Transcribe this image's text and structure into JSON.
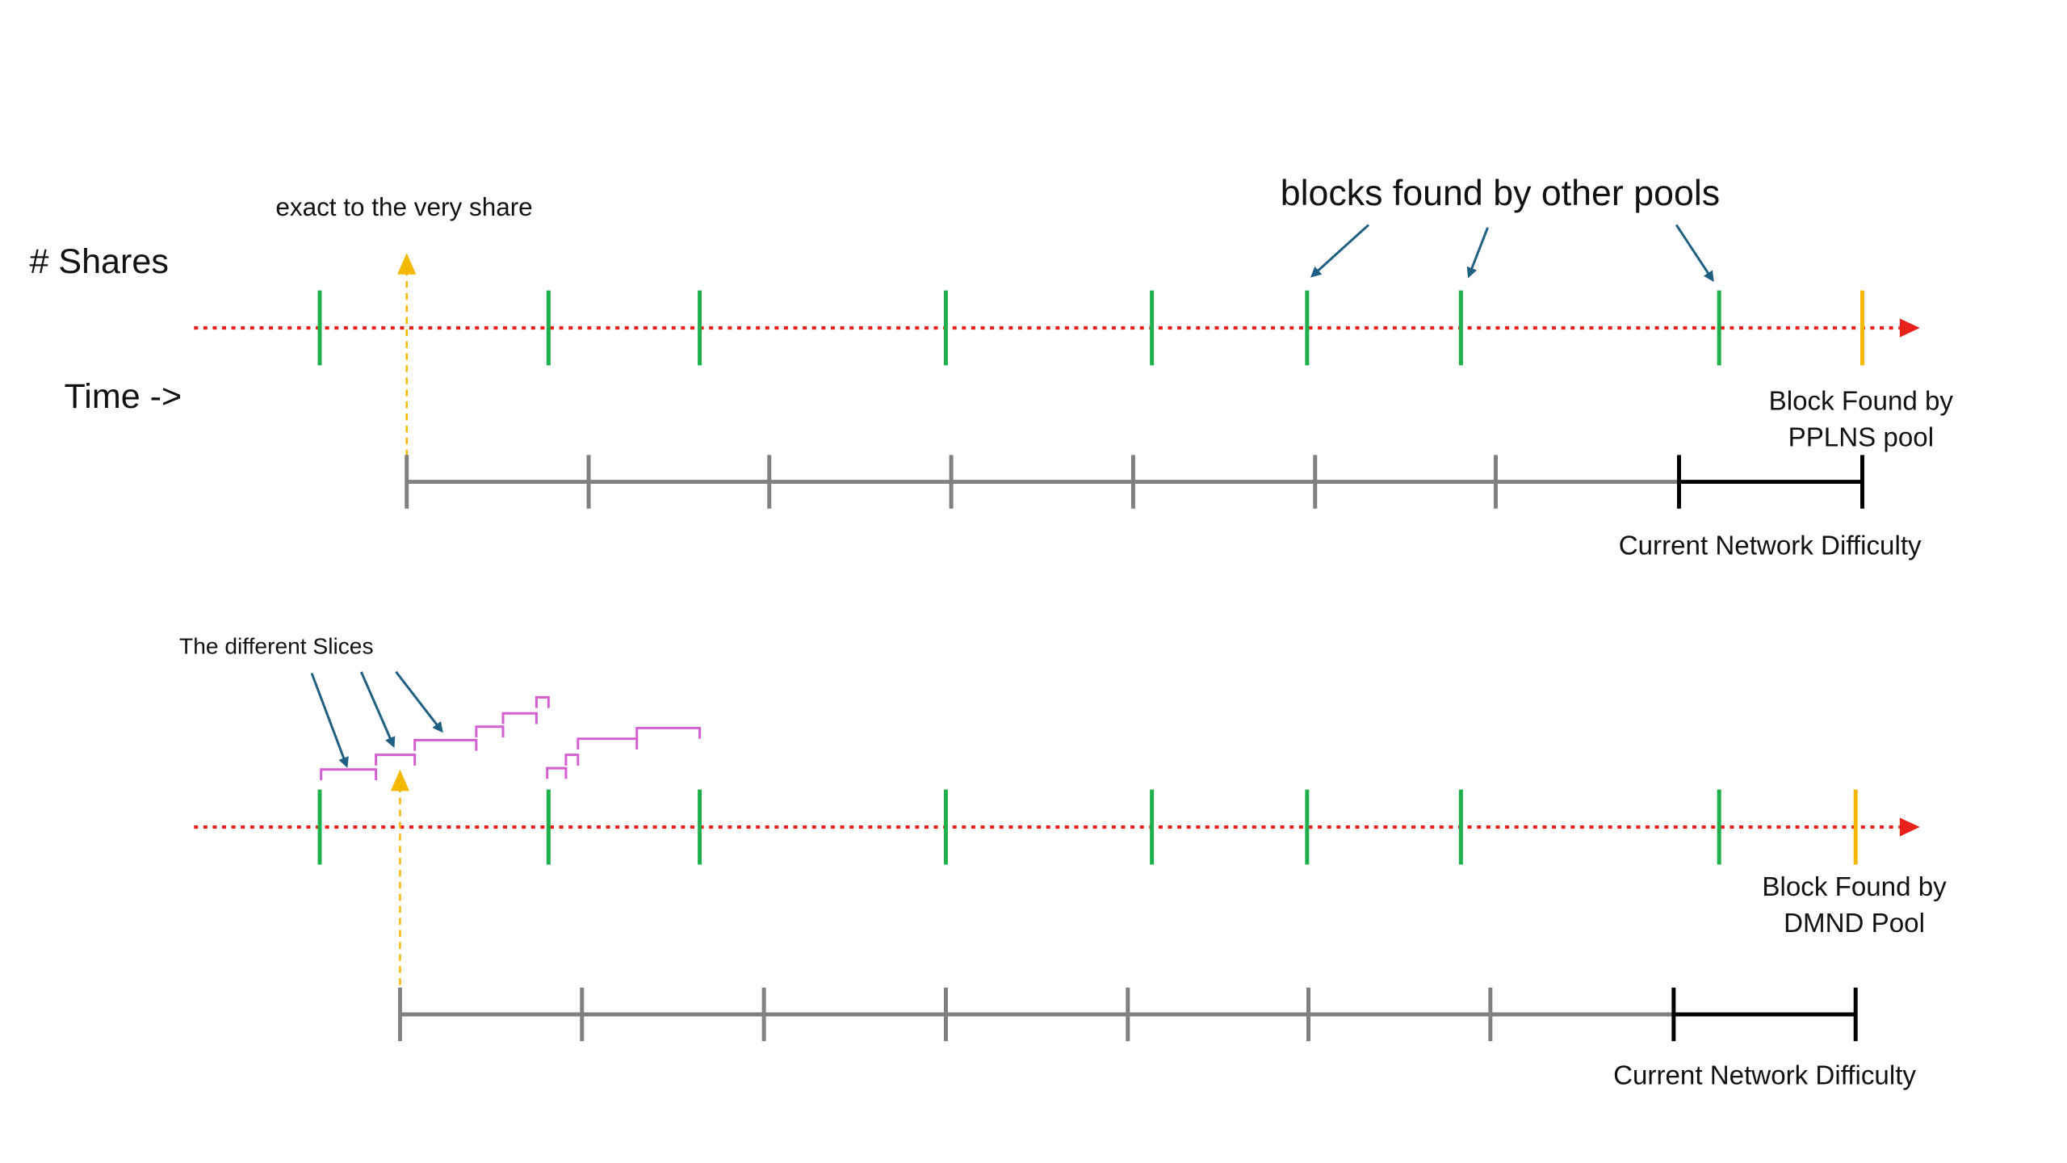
{
  "top": {
    "share_note": "exact to the very share",
    "y_label": "# Shares",
    "x_label": "Time ->",
    "other_pools": "blocks found by other pools",
    "block_found": [
      "Block Found by",
      "PPLNS pool"
    ],
    "difficulty": "Current Network Difficulty"
  },
  "bottom": {
    "slices": "The different Slices",
    "block_found": [
      "Block Found by",
      "DMND Pool"
    ],
    "difficulty": "Current Network Difficulty"
  }
}
